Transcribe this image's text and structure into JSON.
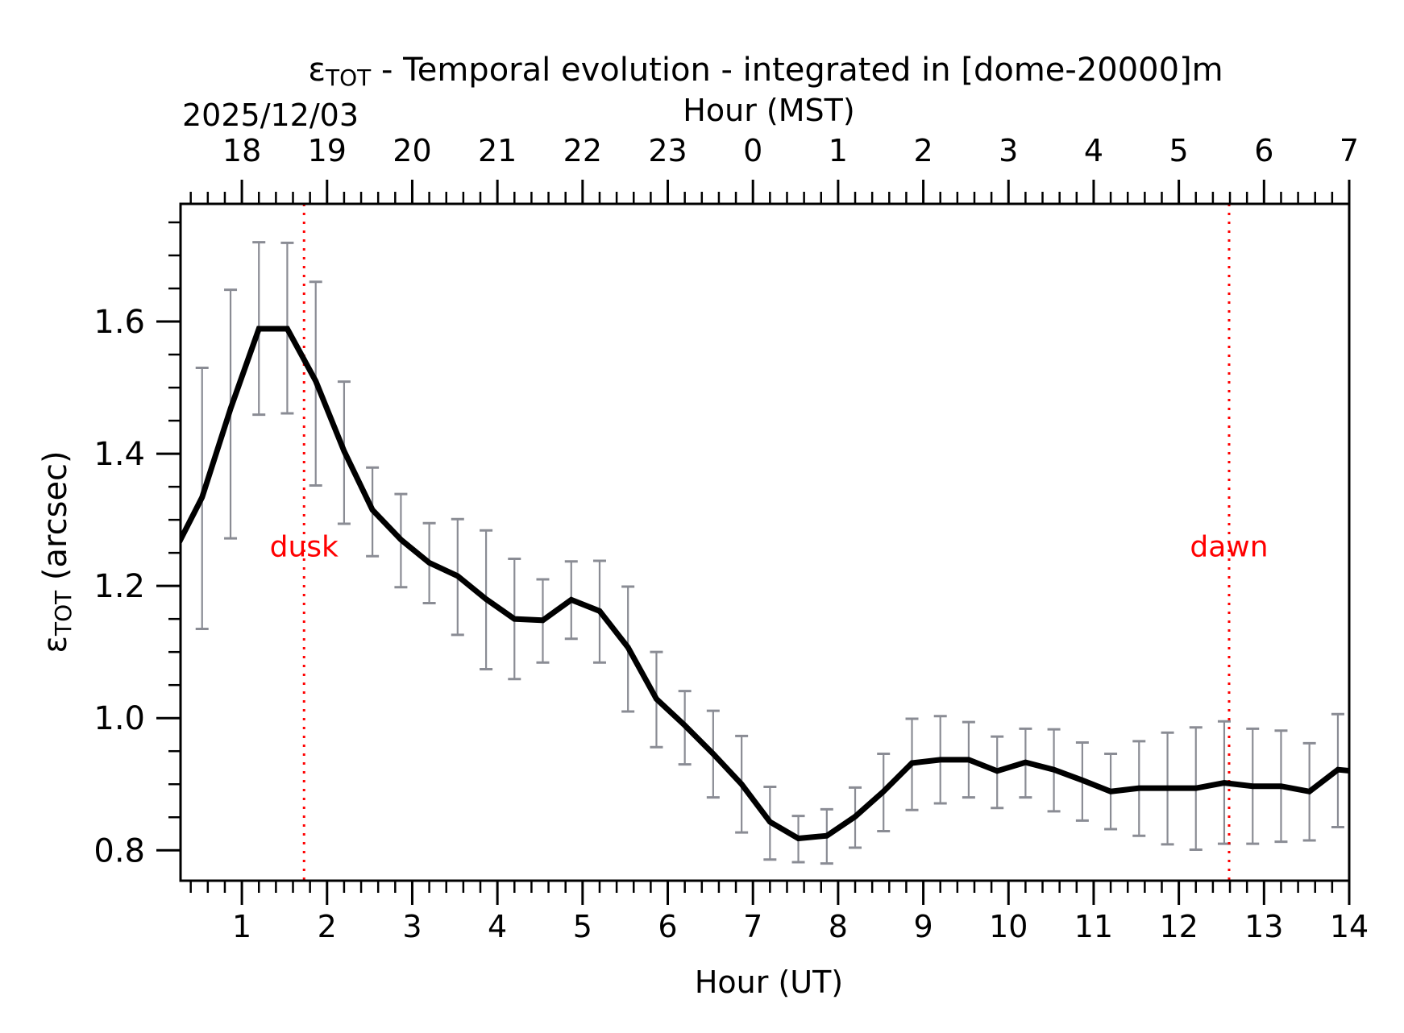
{
  "chart_data": {
    "type": "line",
    "title": "ε",
    "title_sub": "TOT",
    "title_rest": " - Temporal evolution - integrated in [dome-20000]m",
    "date_label": "2025/12/03",
    "xlabel": "Hour (UT)",
    "x2label": "Hour (MST)",
    "ylabel_main": "ε",
    "ylabel_sub": "TOT",
    "ylabel_rest": " (arcsec)",
    "xlim": [
      0.28,
      14.0
    ],
    "ylim": [
      0.754,
      1.778
    ],
    "xticks": [
      1,
      2,
      3,
      4,
      5,
      6,
      7,
      8,
      9,
      10,
      11,
      12,
      13,
      14
    ],
    "xtick_labels": [
      "1",
      "2",
      "3",
      "4",
      "5",
      "6",
      "7",
      "8",
      "9",
      "10",
      "11",
      "12",
      "13",
      "14"
    ],
    "x2ticks": [
      1,
      2,
      3,
      4,
      5,
      6,
      7,
      8,
      9,
      10,
      11,
      12,
      13,
      14
    ],
    "x2tick_labels": [
      "18",
      "19",
      "20",
      "21",
      "22",
      "23",
      "0",
      "1",
      "2",
      "3",
      "4",
      "5",
      "6",
      "7"
    ],
    "yticks": [
      0.8,
      1.0,
      1.2,
      1.4,
      1.6
    ],
    "ytick_labels": [
      "0.8",
      "1.0",
      "1.2",
      "1.4",
      "1.6"
    ],
    "x_minor_step": 0.2,
    "y_minor_step": 0.05,
    "grid": false,
    "colors": {
      "line": "#000000",
      "errorbar": "#8a8c94",
      "annotation": "#ff0000"
    },
    "series": [
      {
        "name": "epsilon_tot",
        "x": [
          0.2,
          0.533,
          0.867,
          1.2,
          1.533,
          1.867,
          2.2,
          2.533,
          2.867,
          3.2,
          3.533,
          3.867,
          4.2,
          4.533,
          4.867,
          5.2,
          5.533,
          5.867,
          6.2,
          6.533,
          6.867,
          7.2,
          7.533,
          7.867,
          8.2,
          8.533,
          8.867,
          9.2,
          9.533,
          9.867,
          10.2,
          10.533,
          10.867,
          11.2,
          11.533,
          11.867,
          12.2,
          12.533,
          12.867,
          13.2,
          13.533,
          13.867,
          14.2
        ],
        "y": [
          1.25,
          1.334,
          1.468,
          1.589,
          1.589,
          1.51,
          1.404,
          1.315,
          1.27,
          1.235,
          1.215,
          1.18,
          1.15,
          1.148,
          1.179,
          1.162,
          1.107,
          1.029,
          0.989,
          0.946,
          0.9,
          0.843,
          0.818,
          0.822,
          0.851,
          0.889,
          0.932,
          0.937,
          0.937,
          0.92,
          0.933,
          0.922,
          0.906,
          0.889,
          0.894,
          0.894,
          0.894,
          0.902,
          0.897,
          0.897,
          0.889,
          0.922,
          0.918
        ],
        "err_low": [
          null,
          1.135,
          1.272,
          1.459,
          1.461,
          1.352,
          1.294,
          1.245,
          1.198,
          1.174,
          1.126,
          1.074,
          1.059,
          1.084,
          1.12,
          1.084,
          1.01,
          0.956,
          0.93,
          0.88,
          0.827,
          0.786,
          0.782,
          0.78,
          0.804,
          0.829,
          0.861,
          0.871,
          0.88,
          0.864,
          0.88,
          0.859,
          0.845,
          0.832,
          0.822,
          0.809,
          0.801,
          0.81,
          0.81,
          0.813,
          0.815,
          0.835,
          null
        ],
        "err_high": [
          null,
          1.53,
          1.648,
          1.72,
          1.719,
          1.66,
          1.509,
          1.379,
          1.339,
          1.295,
          1.301,
          1.284,
          1.241,
          1.21,
          1.237,
          1.238,
          1.199,
          1.1,
          1.041,
          1.011,
          0.973,
          0.896,
          0.852,
          0.862,
          0.895,
          0.946,
          0.999,
          1.003,
          0.994,
          0.972,
          0.984,
          0.983,
          0.963,
          0.946,
          0.965,
          0.978,
          0.986,
          0.995,
          0.984,
          0.981,
          0.962,
          1.006,
          null
        ]
      }
    ],
    "annotations": [
      {
        "label": "dusk",
        "x": 1.73,
        "y": 1.262,
        "kind": "vline"
      },
      {
        "label": "dawn",
        "x": 12.59,
        "y": 1.262,
        "kind": "vline"
      }
    ]
  }
}
